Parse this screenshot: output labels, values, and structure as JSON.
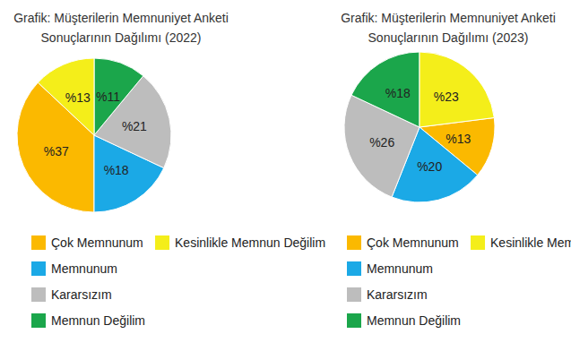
{
  "chart_data": [
    {
      "type": "pie",
      "title": "Grafik: Müşterilerin Memnuniyet Anketi\nSonuçlarının Dağılımı (2022)",
      "categories": [
        "Çok Memnunum",
        "Memnunum",
        "Kararsızım",
        "Memnun Değilim",
        "Kesinlikle Memnun Değilim"
      ],
      "values": [
        37,
        18,
        21,
        11,
        13
      ],
      "value_labels": [
        "%37",
        "%18",
        "%21",
        "%11",
        "%13"
      ],
      "colors": [
        "#fbb900",
        "#1ba9e6",
        "#bdbdbd",
        "#1ba64b",
        "#f4ee1a"
      ],
      "data_labels": true,
      "legend": "bottom"
    },
    {
      "type": "pie",
      "title": "Grafik: Müşterilerin Memnuniyet Anketi\nSonuçlarının Dağılımı (2023)",
      "categories": [
        "Çok Memnunum",
        "Memnunum",
        "Kararsızım",
        "Memnun Değilim",
        "Kesinlikle Memnun Değilim"
      ],
      "values": [
        13,
        20,
        26,
        18,
        23
      ],
      "value_labels": [
        "%13",
        "%20",
        "%26",
        "%18",
        "%23"
      ],
      "colors": [
        "#fbb900",
        "#1ba9e6",
        "#bdbdbd",
        "#1ba64b",
        "#f4ee1a"
      ],
      "data_labels": true,
      "legend": "bottom"
    }
  ]
}
